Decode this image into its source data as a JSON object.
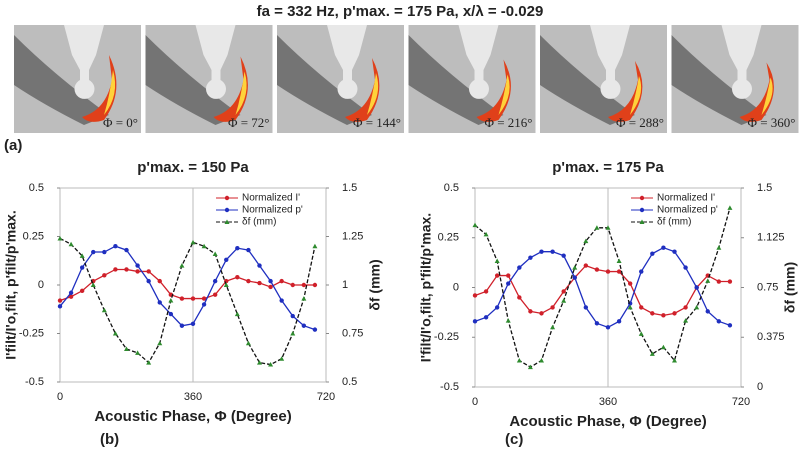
{
  "title": "fa = 332 Hz, p'max. = 175 Pa, x/λ = -0.029",
  "images": [
    {
      "label": "Φ = 0°"
    },
    {
      "label": "Φ = 72°"
    },
    {
      "label": "Φ = 144°"
    },
    {
      "label": "Φ = 216°"
    },
    {
      "label": "Φ = 288°"
    },
    {
      "label": "Φ = 360°"
    }
  ],
  "panel_labels": [
    "(a)",
    "(b)",
    "(c)"
  ],
  "chart_data": [
    {
      "type": "line",
      "title": "p'max. = 150 Pa",
      "x_label": "Acoustic Phase, Φ (Degree)",
      "y_label": "I'filt/I'o,filt, p'filt/p'max.",
      "y2_label": "δf (mm)",
      "xlim": [
        0,
        720
      ],
      "xticks": [
        0,
        360,
        720
      ],
      "ylim": [
        -0.5,
        0.5
      ],
      "yticks": [
        -0.5,
        -0.25,
        0,
        0.25,
        0.5
      ],
      "y2lim": [
        0.5,
        1.5
      ],
      "y2ticks": [
        0.5,
        0.75,
        1,
        1.25,
        1.5
      ],
      "grid": true,
      "legend": "upper right",
      "x": [
        0,
        30,
        60,
        90,
        120,
        150,
        180,
        210,
        240,
        270,
        300,
        330,
        360,
        390,
        420,
        450,
        480,
        510,
        540,
        570,
        600,
        630,
        660,
        690
      ],
      "series": [
        {
          "name": "Normalized I'",
          "color": "#d0202a",
          "marker": "circle",
          "dash": false,
          "values": [
            -0.08,
            -0.06,
            -0.03,
            0.02,
            0.05,
            0.08,
            0.08,
            0.07,
            0.07,
            0.02,
            -0.05,
            -0.07,
            -0.07,
            -0.07,
            -0.05,
            0.02,
            0.04,
            0.02,
            0.01,
            -0.01,
            0.02,
            0,
            0,
            0
          ]
        },
        {
          "name": "Normalized p'",
          "color": "#1f2fc0",
          "marker": "circle",
          "dash": false,
          "values": [
            -0.11,
            -0.04,
            0.09,
            0.17,
            0.17,
            0.2,
            0.18,
            0.1,
            0.02,
            -0.09,
            -0.15,
            -0.21,
            -0.2,
            -0.1,
            0.02,
            0.13,
            0.19,
            0.18,
            0.1,
            0.02,
            -0.08,
            -0.16,
            -0.21,
            -0.23
          ]
        },
        {
          "name": "δf (mm)",
          "color": "#2e8b2e",
          "marker": "triangle",
          "dash": true,
          "axis": "y2",
          "values": [
            1.24,
            1.21,
            1.15,
            1.0,
            0.87,
            0.75,
            0.67,
            0.65,
            0.6,
            0.7,
            0.92,
            1.1,
            1.22,
            1.2,
            1.16,
            1.0,
            0.85,
            0.7,
            0.6,
            0.59,
            0.62,
            0.75,
            0.93,
            1.2
          ]
        }
      ]
    },
    {
      "type": "line",
      "title": "p'max. = 175 Pa",
      "x_label": "Acoustic Phase, Φ (Degree)",
      "y_label": "I'filt/I'o,filt, p'filt/p'max.",
      "y2_label": "δf (mm)",
      "xlim": [
        0,
        720
      ],
      "xticks": [
        0,
        360,
        720
      ],
      "ylim": [
        -0.5,
        0.5
      ],
      "yticks": [
        -0.5,
        -0.25,
        0,
        0.25,
        0.5
      ],
      "y2lim": [
        0,
        1.5
      ],
      "y2ticks": [
        0,
        0.375,
        0.75,
        1.125,
        1.5
      ],
      "grid": true,
      "legend": "upper right",
      "x": [
        0,
        30,
        60,
        90,
        120,
        150,
        180,
        210,
        240,
        270,
        300,
        330,
        360,
        390,
        420,
        450,
        480,
        510,
        540,
        570,
        600,
        630,
        660,
        690
      ],
      "series": [
        {
          "name": "Normalized I'",
          "color": "#d0202a",
          "marker": "circle",
          "dash": false,
          "values": [
            -0.04,
            -0.02,
            0.06,
            0.06,
            -0.05,
            -0.12,
            -0.13,
            -0.1,
            -0.02,
            0.05,
            0.11,
            0.09,
            0.08,
            0.08,
            0.02,
            -0.1,
            -0.13,
            -0.14,
            -0.13,
            -0.1,
            0,
            0.06,
            0.03,
            0.03
          ]
        },
        {
          "name": "Normalized p'",
          "color": "#1f2fc0",
          "marker": "circle",
          "dash": false,
          "values": [
            -0.17,
            -0.15,
            -0.1,
            0.02,
            0.1,
            0.15,
            0.18,
            0.18,
            0.16,
            0.05,
            -0.1,
            -0.18,
            -0.2,
            -0.17,
            -0.08,
            0.08,
            0.17,
            0.2,
            0.18,
            0.1,
            0,
            -0.12,
            -0.17,
            -0.19
          ]
        },
        {
          "name": "δf (mm)",
          "color": "#2e8b2e",
          "marker": "triangle",
          "dash": true,
          "axis": "y2",
          "values": [
            1.22,
            1.15,
            0.95,
            0.5,
            0.2,
            0.15,
            0.2,
            0.45,
            0.65,
            0.9,
            1.1,
            1.2,
            1.2,
            0.95,
            0.6,
            0.4,
            0.25,
            0.3,
            0.2,
            0.5,
            0.6,
            0.8,
            1.05,
            1.35
          ]
        }
      ]
    }
  ]
}
